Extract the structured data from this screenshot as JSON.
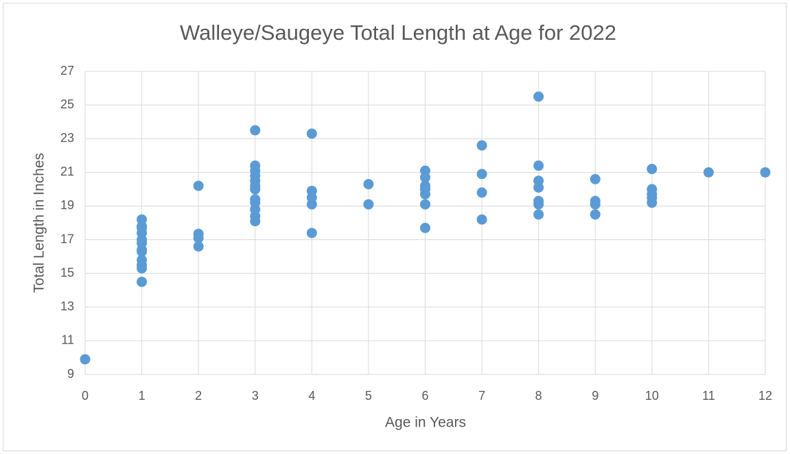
{
  "chart_data": {
    "type": "scatter",
    "title": "Walleye/Saugeye Total Length at Age for 2022",
    "x_label": "Age in Years",
    "y_label": "Total Length in Inches",
    "color": "#5b9bd5",
    "grid": true,
    "xlim": [
      0,
      12
    ],
    "xticks": [
      0,
      1,
      2,
      3,
      4,
      5,
      6,
      7,
      8,
      9,
      10,
      11,
      12
    ],
    "ylim": [
      9,
      27
    ],
    "yticks": [
      9,
      11,
      13,
      15,
      17,
      19,
      21,
      23,
      25,
      27
    ],
    "x": [
      0,
      1,
      1,
      1,
      1,
      1,
      1,
      1,
      1,
      1,
      1,
      1,
      1,
      2,
      2,
      2,
      2,
      3,
      3,
      3,
      3,
      3,
      3,
      3,
      3,
      3,
      3,
      3,
      3,
      4,
      4,
      4,
      4,
      4,
      5,
      5,
      6,
      6,
      6,
      6,
      6,
      6,
      6,
      7,
      7,
      7,
      7,
      8,
      8,
      8,
      8,
      8,
      8,
      8,
      9,
      9,
      9,
      9,
      10,
      10,
      10,
      10,
      10,
      11,
      12
    ],
    "values": [
      9.9,
      18.2,
      17.8,
      17.7,
      17.4,
      17.0,
      16.8,
      16.4,
      16.3,
      15.8,
      15.5,
      15.3,
      14.5,
      20.2,
      17.35,
      17.1,
      16.6,
      23.5,
      21.4,
      21.1,
      20.8,
      20.5,
      20.2,
      20.0,
      19.4,
      19.2,
      18.8,
      18.4,
      18.1,
      23.3,
      19.9,
      19.5,
      19.1,
      17.4,
      20.3,
      19.1,
      21.1,
      20.7,
      20.2,
      20.0,
      19.7,
      19.1,
      17.7,
      22.6,
      20.9,
      19.8,
      18.2,
      25.5,
      21.4,
      20.5,
      20.1,
      19.3,
      19.1,
      18.5,
      20.6,
      19.3,
      19.1,
      18.5,
      21.2,
      20.0,
      19.7,
      19.5,
      19.2,
      21.0,
      21.0
    ]
  }
}
